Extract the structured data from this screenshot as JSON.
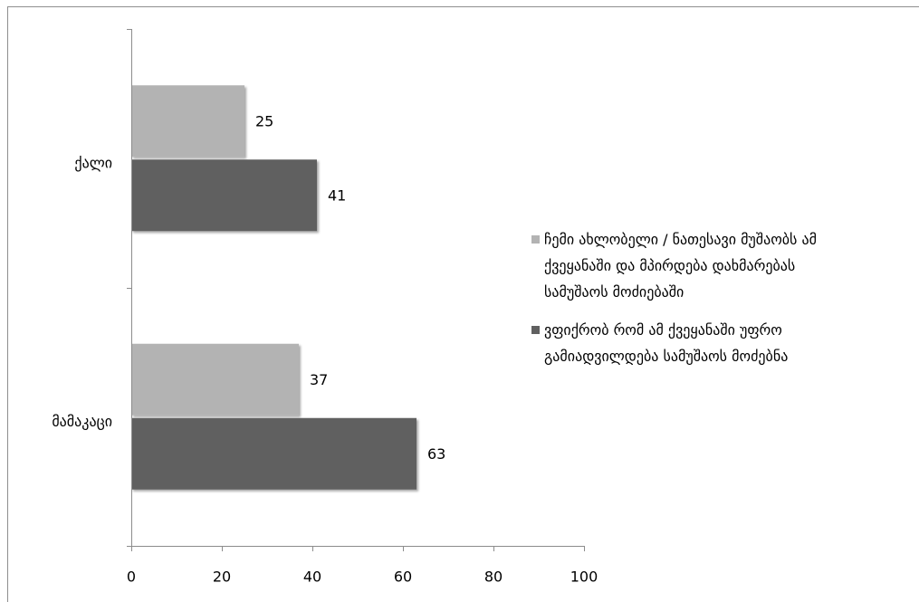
{
  "chart_data": {
    "type": "bar",
    "orientation": "horizontal",
    "categories": [
      "ქალი",
      "მამაკაცი"
    ],
    "series": [
      {
        "name": "ჩემი ახლობელი / ნათესავი მუშაობს ამ ქვეყანაში და მპირდება დახმარებას სამუშაოს მოძიებაში",
        "values": [
          25,
          37
        ],
        "color": "#b3b3b3"
      },
      {
        "name": "ვფიქრობ რომ ამ ქვეყანაში უფრო გამიადვილდება სამუშაოს მოძებნა",
        "values": [
          41,
          63
        ],
        "color": "#606060"
      }
    ],
    "xlim": [
      0,
      100
    ],
    "xticks": [
      0,
      20,
      40,
      60,
      80,
      100
    ],
    "data_labels": true,
    "grid": false,
    "legend": "right"
  },
  "colors": {
    "axis": "#8c8c8c",
    "frame": "#8f8f8f",
    "text": "#000000"
  }
}
